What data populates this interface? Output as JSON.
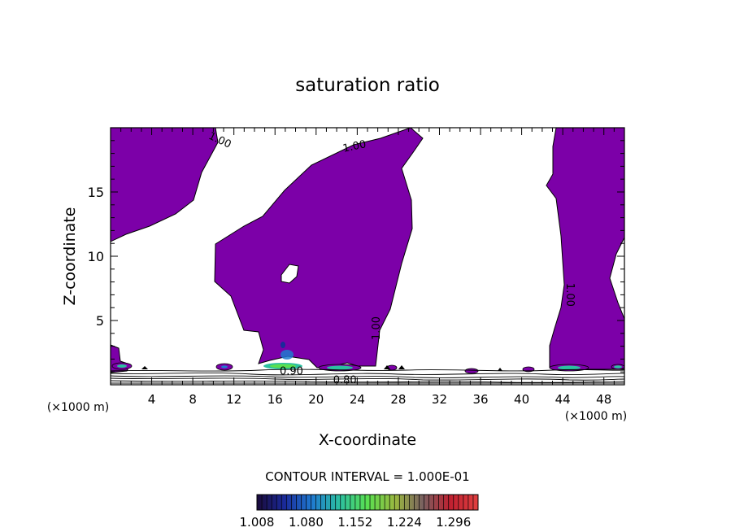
{
  "chart_data": {
    "type": "heatmap",
    "title": "saturation ratio",
    "xlabel": "X-coordinate",
    "ylabel": "Z-coordinate",
    "xlim": [
      0,
      50
    ],
    "ylim": [
      0,
      20
    ],
    "x_ticks": [
      4,
      8,
      12,
      16,
      20,
      24,
      28,
      32,
      36,
      40,
      44,
      48
    ],
    "y_ticks": [
      5,
      10,
      15
    ],
    "x_unit_label": "(×1000 m)",
    "y_unit_label": "(×1000 m)",
    "fill_color": "#7c00a8",
    "contour_labels": [
      {
        "text": "1.00",
        "x": 10.5,
        "y": 18.8,
        "angle": 25
      },
      {
        "text": "1.00",
        "x": 23.8,
        "y": 18.3,
        "angle": -12
      },
      {
        "text": "1.00",
        "x": 26.2,
        "y": 4.4,
        "angle": -90
      },
      {
        "text": "1.00",
        "x": 44.4,
        "y": 7.0,
        "angle": 90
      },
      {
        "text": "0.90",
        "x": 17.6,
        "y": 0.8,
        "angle": 0
      },
      {
        "text": "0.80",
        "x": 22.8,
        "y": 0.1,
        "angle": 0
      }
    ],
    "contour_interval_text": "CONTOUR INTERVAL = 1.000E-01",
    "colorbar": {
      "range": [
        1.008,
        1.332
      ],
      "ticks": [
        "1.008",
        "1.080",
        "1.152",
        "1.224",
        "1.296"
      ],
      "colors": [
        "#1a0a3a",
        "#1a2a9a",
        "#1f7ad0",
        "#2cc0a0",
        "#5ae050",
        "#9ab840",
        "#7a6060",
        "#c02030",
        "#e04040"
      ]
    }
  }
}
